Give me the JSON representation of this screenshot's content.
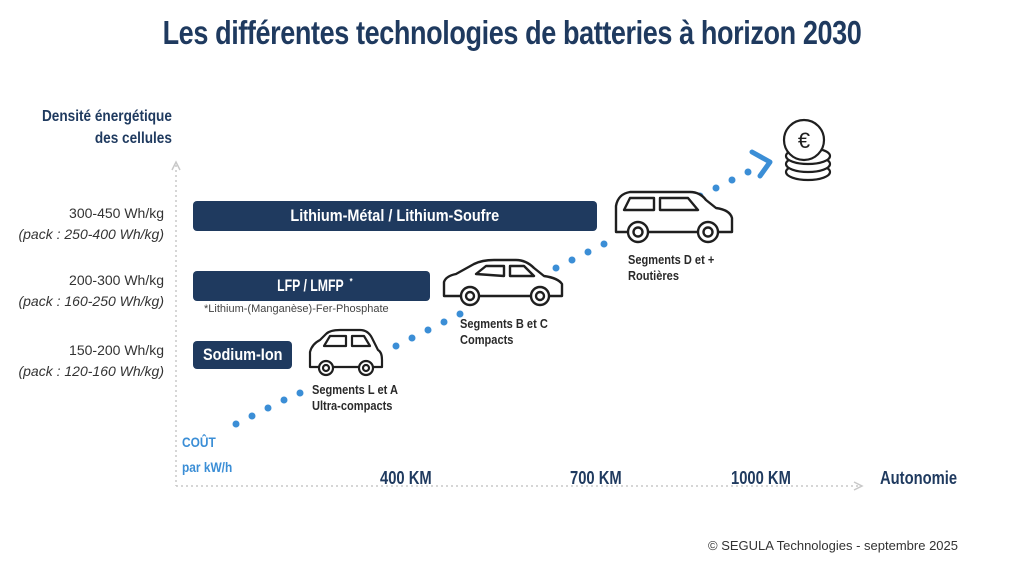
{
  "title": "Les différentes technologies de batteries à horizon 2030",
  "y_axis": {
    "line1": "Densité énergétique",
    "line2": "des cellules"
  },
  "tiers": [
    {
      "range": "300-450 Wh/kg",
      "pack": "(pack : 250-400 Wh/kg)",
      "bar": "Lithium-Métal / Lithium-Soufre"
    },
    {
      "range": "200-300 Wh/kg",
      "pack": "(pack : 160-250 Wh/kg)",
      "bar": "LFP / LMFP",
      "bar_mark": "*"
    },
    {
      "range": "150-200 Wh/kg",
      "pack": "(pack : 120-160 Wh/kg)",
      "bar": "Sodium-Ion"
    }
  ],
  "footnote": "*Lithium-(Manganèse)-Fer-Phosphate",
  "segments": [
    {
      "line1": "Segments L et A",
      "line2": "Ultra-compacts",
      "icon": "small-car-icon"
    },
    {
      "line1": "Segments B et C",
      "line2": "Compacts",
      "icon": "sedan-car-icon"
    },
    {
      "line1": "Segments D et +",
      "line2": "Routières",
      "icon": "suv-car-icon"
    }
  ],
  "cost": {
    "line1": "COÛT",
    "line2": "par kW/h"
  },
  "x_axis": {
    "ticks": [
      "400 KM",
      "700 KM",
      "1000 KM"
    ],
    "title": "Autonomie"
  },
  "coin_symbol": "€",
  "copyright": "© SEGULA Technologies - septembre 2025",
  "colors": {
    "navy": "#1f3a5f",
    "accent_blue": "#3b8ed6",
    "axis_gray": "#c8c8c8"
  }
}
